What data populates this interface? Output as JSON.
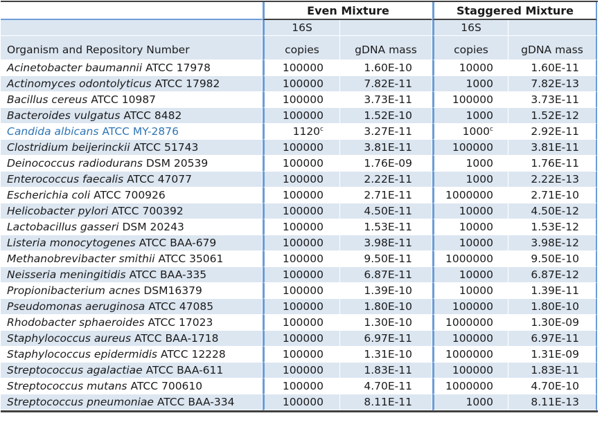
{
  "colors": {
    "band": "#dce6f1",
    "group_border": "#6b9cd6",
    "dark_border": "#404040",
    "highlight_text": "#2e75b6"
  },
  "table": {
    "col_headers": {
      "organism": "Organism and Repository Number",
      "groups": [
        {
          "label": "Even Mixture",
          "sub_top": "16S",
          "sub_copies": "copies",
          "sub_mass": "gDNA mass"
        },
        {
          "label": "Staggered Mixture",
          "sub_top": "16S",
          "sub_copies": "copies",
          "sub_mass": "gDNA mass"
        }
      ]
    },
    "rows": [
      {
        "species": "Acinetobacter baumannii",
        "strain": "ATCC 17978",
        "even_copies": "100000",
        "even_copies_sup": "",
        "even_mass": "1.60E-10",
        "stag_copies": "10000",
        "stag_copies_sup": "",
        "stag_mass": "1.60E-11",
        "highlighted": false
      },
      {
        "species": "Actinomyces odontolyticus",
        "strain": "ATCC 17982",
        "even_copies": "100000",
        "even_copies_sup": "",
        "even_mass": "7.82E-11",
        "stag_copies": "1000",
        "stag_copies_sup": "",
        "stag_mass": "7.82E-13",
        "highlighted": false
      },
      {
        "species": "Bacillus cereus",
        "strain": "ATCC 10987",
        "even_copies": "100000",
        "even_copies_sup": "",
        "even_mass": "3.73E-11",
        "stag_copies": "100000",
        "stag_copies_sup": "",
        "stag_mass": "3.73E-11",
        "highlighted": false
      },
      {
        "species": "Bacteroides vulgatus",
        "strain": "ATCC 8482",
        "even_copies": "100000",
        "even_copies_sup": "",
        "even_mass": "1.52E-10",
        "stag_copies": "1000",
        "stag_copies_sup": "",
        "stag_mass": "1.52E-12",
        "highlighted": false
      },
      {
        "species": "Candida albicans",
        "strain": "ATCC MY-2876",
        "even_copies": "1120",
        "even_copies_sup": "c",
        "even_mass": "3.27E-11",
        "stag_copies": "1000",
        "stag_copies_sup": "c",
        "stag_mass": "2.92E-11",
        "highlighted": true
      },
      {
        "species": "Clostridium beijerinckii",
        "strain": "ATCC 51743",
        "even_copies": "100000",
        "even_copies_sup": "",
        "even_mass": "3.81E-11",
        "stag_copies": "100000",
        "stag_copies_sup": "",
        "stag_mass": "3.81E-11",
        "highlighted": false
      },
      {
        "species": "Deinococcus radiodurans",
        "strain": "DSM 20539",
        "even_copies": "100000",
        "even_copies_sup": "",
        "even_mass": "1.76E-09",
        "stag_copies": "1000",
        "stag_copies_sup": "",
        "stag_mass": "1.76E-11",
        "highlighted": false
      },
      {
        "species": "Enterococcus faecalis",
        "strain": "ATCC 47077",
        "even_copies": "100000",
        "even_copies_sup": "",
        "even_mass": "2.22E-11",
        "stag_copies": "1000",
        "stag_copies_sup": "",
        "stag_mass": "2.22E-13",
        "highlighted": false
      },
      {
        "species": "Escherichia coli",
        "strain": "ATCC 700926",
        "even_copies": "100000",
        "even_copies_sup": "",
        "even_mass": "2.71E-11",
        "stag_copies": "1000000",
        "stag_copies_sup": "",
        "stag_mass": "2.71E-10",
        "highlighted": false
      },
      {
        "species": "Helicobacter pylori",
        "strain": "ATCC 700392",
        "even_copies": "100000",
        "even_copies_sup": "",
        "even_mass": "4.50E-11",
        "stag_copies": "10000",
        "stag_copies_sup": "",
        "stag_mass": "4.50E-12",
        "highlighted": false
      },
      {
        "species": "Lactobacillus gasseri",
        "strain": "DSM 20243",
        "even_copies": "100000",
        "even_copies_sup": "",
        "even_mass": "1.53E-11",
        "stag_copies": "10000",
        "stag_copies_sup": "",
        "stag_mass": "1.53E-12",
        "highlighted": false
      },
      {
        "species": "Listeria monocytogenes",
        "strain": "ATCC BAA-679",
        "even_copies": "100000",
        "even_copies_sup": "",
        "even_mass": "3.98E-11",
        "stag_copies": "10000",
        "stag_copies_sup": "",
        "stag_mass": "3.98E-12",
        "highlighted": false
      },
      {
        "species": "Methanobrevibacter smithii",
        "strain": "ATCC 35061",
        "even_copies": "100000",
        "even_copies_sup": "",
        "even_mass": "9.50E-11",
        "stag_copies": "1000000",
        "stag_copies_sup": "",
        "stag_mass": "9.50E-10",
        "highlighted": false
      },
      {
        "species": "Neisseria meningitidis",
        "strain": "ATCC BAA-335",
        "even_copies": "100000",
        "even_copies_sup": "",
        "even_mass": "6.87E-11",
        "stag_copies": "10000",
        "stag_copies_sup": "",
        "stag_mass": "6.87E-12",
        "highlighted": false
      },
      {
        "species": "Propionibacterium acnes",
        "strain": "DSM16379",
        "even_copies": "100000",
        "even_copies_sup": "",
        "even_mass": "1.39E-10",
        "stag_copies": "10000",
        "stag_copies_sup": "",
        "stag_mass": "1.39E-11",
        "highlighted": false
      },
      {
        "species": "Pseudomonas aeruginosa",
        "strain": "ATCC 47085",
        "even_copies": "100000",
        "even_copies_sup": "",
        "even_mass": "1.80E-10",
        "stag_copies": "100000",
        "stag_copies_sup": "",
        "stag_mass": "1.80E-10",
        "highlighted": false
      },
      {
        "species": "Rhodobacter sphaeroides",
        "strain": "ATCC 17023",
        "even_copies": "100000",
        "even_copies_sup": "",
        "even_mass": "1.30E-10",
        "stag_copies": "1000000",
        "stag_copies_sup": "",
        "stag_mass": "1.30E-09",
        "highlighted": false
      },
      {
        "species": "Staphylococcus aureus",
        "strain": "ATCC BAA-1718",
        "even_copies": "100000",
        "even_copies_sup": "",
        "even_mass": "6.97E-11",
        "stag_copies": "100000",
        "stag_copies_sup": "",
        "stag_mass": "6.97E-11",
        "highlighted": false
      },
      {
        "species": "Staphylococcus epidermidis",
        "strain": "ATCC 12228",
        "even_copies": "100000",
        "even_copies_sup": "",
        "even_mass": "1.31E-10",
        "stag_copies": "1000000",
        "stag_copies_sup": "",
        "stag_mass": "1.31E-09",
        "highlighted": false
      },
      {
        "species": "Streptococcus agalactiae",
        "strain": "ATCC BAA-611",
        "even_copies": "100000",
        "even_copies_sup": "",
        "even_mass": "1.83E-11",
        "stag_copies": "100000",
        "stag_copies_sup": "",
        "stag_mass": "1.83E-11",
        "highlighted": false
      },
      {
        "species": "Streptococcus mutans",
        "strain": "ATCC 700610",
        "even_copies": "100000",
        "even_copies_sup": "",
        "even_mass": "4.70E-11",
        "stag_copies": "1000000",
        "stag_copies_sup": "",
        "stag_mass": "4.70E-10",
        "highlighted": false
      },
      {
        "species": "Streptococcus pneumoniae",
        "strain": "ATCC BAA-334",
        "even_copies": "100000",
        "even_copies_sup": "",
        "even_mass": "8.11E-11",
        "stag_copies": "1000",
        "stag_copies_sup": "",
        "stag_mass": "8.11E-13",
        "highlighted": false
      }
    ]
  }
}
